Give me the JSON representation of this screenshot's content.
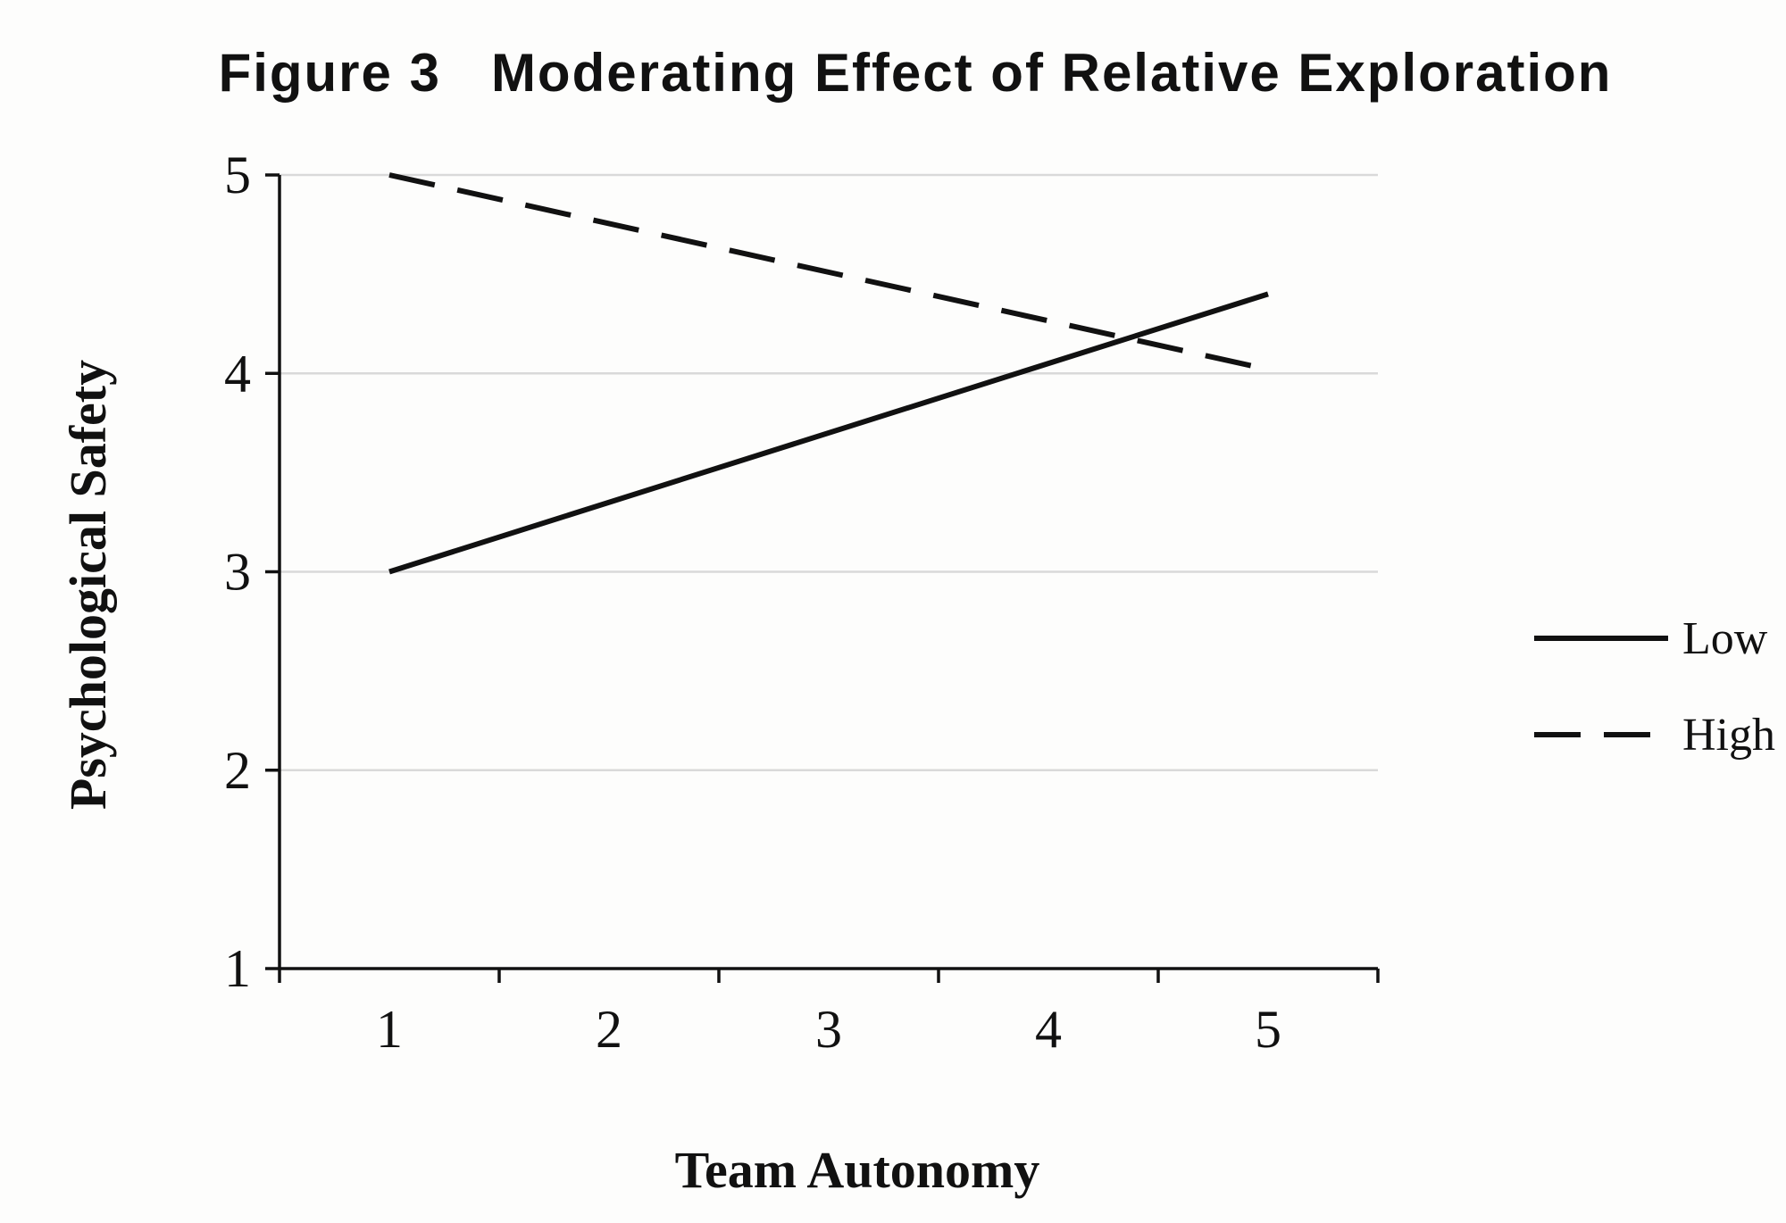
{
  "chart_data": {
    "type": "line",
    "title": "Figure 3   Moderating Effect of Relative Exploration",
    "xlabel": "Team Autonomy",
    "ylabel": "Psychological Safety",
    "x": [
      1,
      5
    ],
    "xticks": [
      "1",
      "2",
      "3",
      "4",
      "5"
    ],
    "yticks": [
      "1",
      "2",
      "3",
      "4",
      "5"
    ],
    "xlim": [
      0.5,
      5.5
    ],
    "ylim": [
      1,
      5
    ],
    "grid": true,
    "legend_position": "right",
    "series": [
      {
        "name": "Low",
        "values": [
          3.0,
          4.4
        ],
        "style": "solid",
        "color": "#111111"
      },
      {
        "name": "High",
        "values": [
          5.0,
          4.02
        ],
        "style": "dashed",
        "color": "#111111"
      }
    ]
  }
}
